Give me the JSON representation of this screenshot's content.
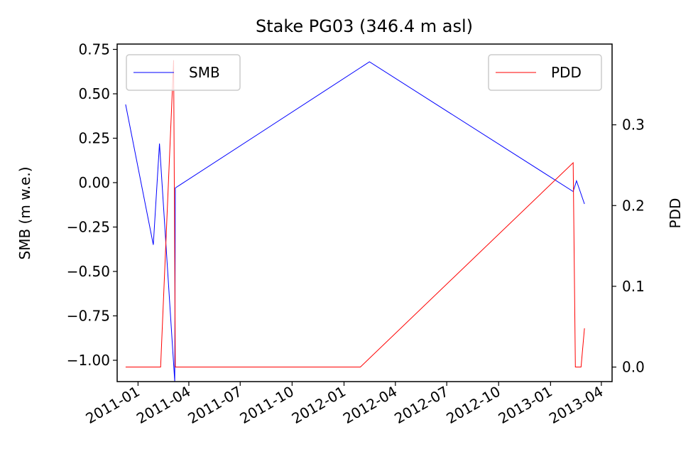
{
  "chart_data": {
    "type": "line",
    "title": "Stake PG03 (346.4 m asl)",
    "xlabel": "",
    "ylabel_left": "SMB (m w.e.)",
    "ylabel_right": "PDD",
    "x_ticks": [
      "2011-01",
      "2011-04",
      "2011-07",
      "2011-10",
      "2012-01",
      "2012-04",
      "2012-07",
      "2012-10",
      "2013-01",
      "2013-04"
    ],
    "y_left_ticks": [
      "0.75",
      "0.50",
      "0.25",
      "0.00",
      "−0.25",
      "−0.50",
      "−0.75",
      "−1.00"
    ],
    "y_right_ticks": [
      "0.3",
      "0.2",
      "0.1",
      "0.0"
    ],
    "ylim_left": [
      -1.12,
      0.78
    ],
    "ylim_right": [
      -0.018,
      0.4
    ],
    "xlim": [
      "2010-11-25",
      "2013-04-20"
    ],
    "legend_left": "upper-left",
    "legend_right": "upper-right",
    "series": [
      {
        "name": "SMB",
        "axis": "left",
        "color": "#0000ff",
        "x": [
          "2010-12-10",
          "2011-01-28",
          "2011-02-08",
          "2011-03-07",
          "2011-03-08",
          "2012-02-15",
          "2013-02-10",
          "2013-02-16",
          "2013-03-02"
        ],
        "y": [
          0.44,
          -0.35,
          0.22,
          -1.12,
          -0.03,
          0.68,
          -0.05,
          0.01,
          -0.12
        ]
      },
      {
        "name": "PDD",
        "axis": "right",
        "color": "#ff0000",
        "x": [
          "2010-12-10",
          "2011-02-10",
          "2011-03-05",
          "2011-03-08",
          "2012-01-30",
          "2013-02-10",
          "2013-02-14",
          "2013-02-24",
          "2013-03-02"
        ],
        "y": [
          0.0,
          0.0,
          0.38,
          0.0,
          0.0,
          0.253,
          0.0,
          0.0,
          0.048
        ]
      }
    ]
  }
}
